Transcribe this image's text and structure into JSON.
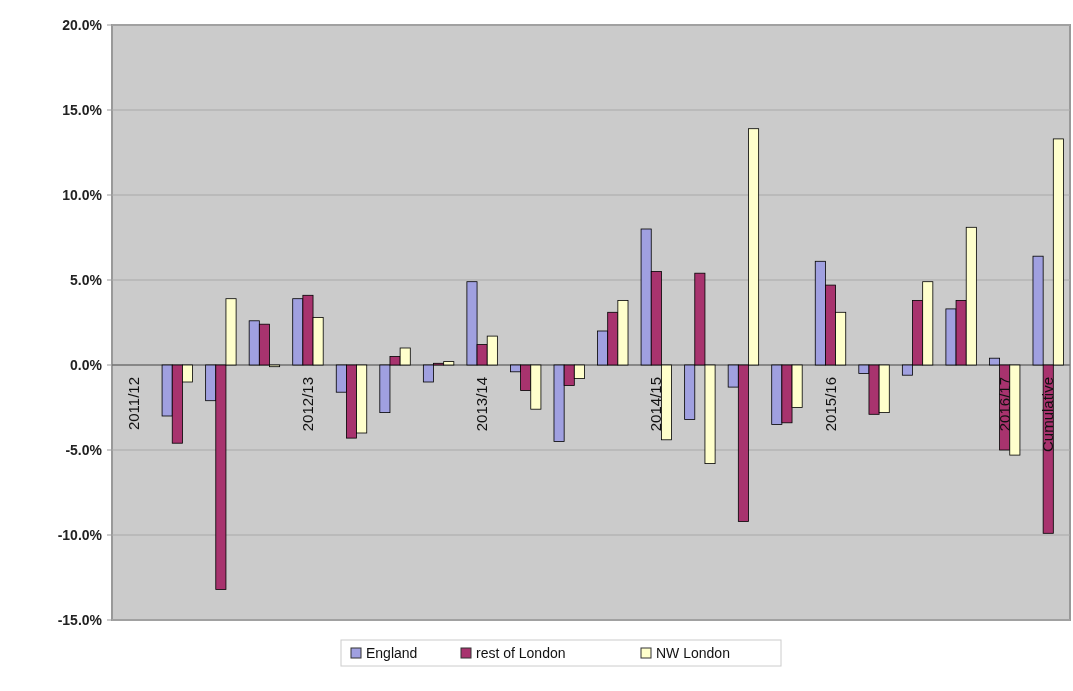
{
  "chart_data": {
    "type": "bar",
    "categories": [
      "2011/12",
      null,
      null,
      null,
      "2012/13",
      null,
      null,
      null,
      "2013/14",
      null,
      null,
      null,
      "2014/15",
      null,
      null,
      null,
      "2015/16",
      null,
      null,
      null,
      "2016/17",
      "Cumulative"
    ],
    "series": [
      {
        "name": "England",
        "color": "#a0a0e0",
        "values": [
          null,
          -3.0,
          -2.1,
          2.6,
          3.9,
          -1.6,
          -2.8,
          -1.0,
          4.9,
          -0.4,
          -4.5,
          2.0,
          8.0,
          -3.2,
          -1.3,
          -3.5,
          6.1,
          -0.5,
          -0.6,
          3.3,
          0.4,
          6.4
        ]
      },
      {
        "name": "rest of London",
        "color": "#a8336e",
        "values": [
          null,
          -4.6,
          -13.2,
          2.4,
          4.1,
          -4.3,
          0.5,
          0.1,
          1.2,
          -1.5,
          -1.2,
          3.1,
          5.5,
          5.4,
          -9.2,
          -3.4,
          4.7,
          -2.9,
          3.8,
          3.8,
          -5.0,
          -9.9
        ]
      },
      {
        "name": "NW London",
        "color": "#ffffcc",
        "values": [
          null,
          -1.0,
          3.9,
          -0.1,
          2.8,
          -4.0,
          1.0,
          0.2,
          1.7,
          -2.6,
          -0.8,
          3.8,
          -4.4,
          -5.8,
          13.9,
          -2.5,
          3.1,
          -2.8,
          4.9,
          8.1,
          -5.3,
          13.3
        ]
      }
    ],
    "ylim": [
      -15,
      20
    ],
    "yticks": [
      {
        "value": -15,
        "label": "-15.0%"
      },
      {
        "value": -10,
        "label": "-10.0%"
      },
      {
        "value": -5,
        "label": "-5.0%"
      },
      {
        "value": 0,
        "label": "0.0%"
      },
      {
        "value": 5,
        "label": "5.0%"
      },
      {
        "value": 10,
        "label": "10.0%"
      },
      {
        "value": 15,
        "label": "15.0%"
      },
      {
        "value": 20,
        "label": "20.0%"
      }
    ],
    "grid": "y",
    "legend": "bottom"
  }
}
